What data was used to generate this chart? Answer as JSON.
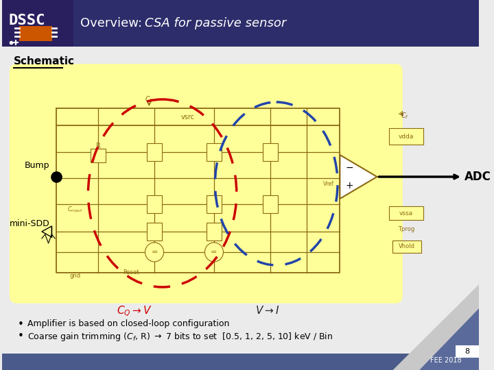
{
  "title_normal": "Overview: ",
  "title_italic": "CSA for passive sensor",
  "section_label": "Schematic",
  "header_bg": "#2d2d6b",
  "logo_bg": "#2a1f5e",
  "slide_bg": "#ebebeb",
  "yellow_box_color": "#ffff99",
  "circ_color": "#8b6914",
  "red_color": "#cc0000",
  "blue_color": "#2244aa",
  "bump_label": "Bump",
  "mini_sdd_label": "mini-SDD",
  "adc_label": "ADC",
  "bullet1": "Amplifier is based on closed-loop configuration",
  "bullet2": "Coarse gain trimming (C_f, R) → 7 bits to set  [0.5, 1, 2, 5, 10] keV / Bin",
  "page_num": "8",
  "fee_label": "FEE 2018",
  "footer_bg": "#4a5a8a",
  "orange_color": "#cc5500"
}
